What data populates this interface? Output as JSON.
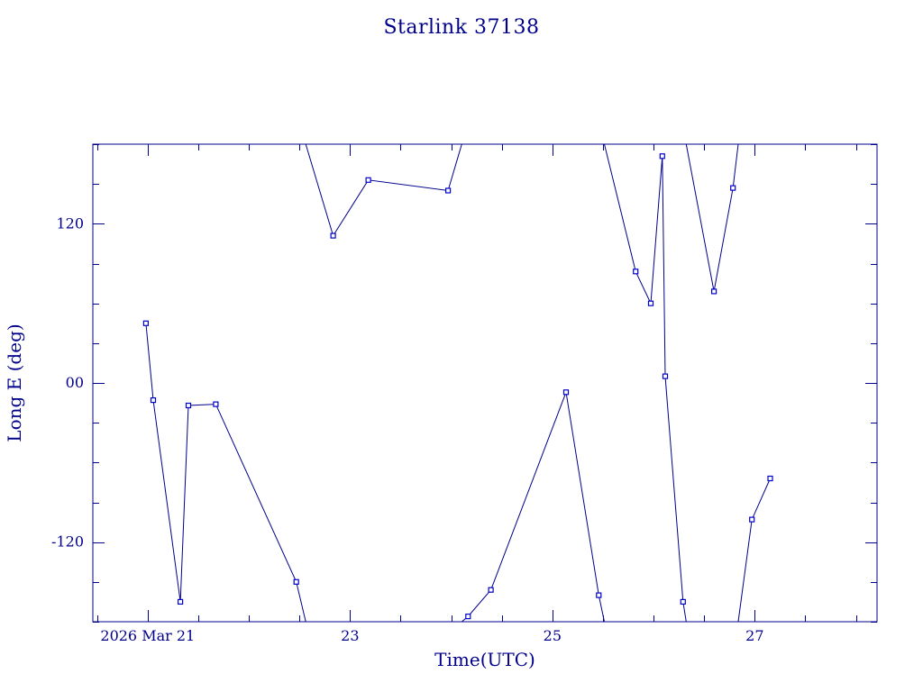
{
  "chart_data": {
    "type": "line",
    "title": "Starlink 37138",
    "xlabel": "Time(UTC)",
    "ylabel": "Long E (deg)",
    "xlim": [
      "2026-03-20T11:00",
      "2026-03-28T05:00"
    ],
    "ylim": [
      -180,
      180
    ],
    "x_ticks": [
      {
        "value": "2026-03-21",
        "label": "2026 Mar 21"
      },
      {
        "value": "2026-03-23",
        "label": "23"
      },
      {
        "value": "2026-03-25",
        "label": "25"
      },
      {
        "value": "2026-03-27",
        "label": "27"
      }
    ],
    "y_ticks": [
      {
        "value": 120,
        "label": "120"
      },
      {
        "value": 0,
        "label": "00"
      },
      {
        "value": -120,
        "label": "-120"
      }
    ],
    "grid": false,
    "marker": "square",
    "series": [
      {
        "points": [
          [
            "2026-03-20T23:35",
            45
          ],
          [
            "2026-03-21T01:20",
            -13
          ],
          [
            "2026-03-21T07:45",
            -165
          ],
          [
            "2026-03-21T09:40",
            -17
          ],
          [
            "2026-03-21T16:10",
            -16
          ],
          [
            "2026-03-22T11:15",
            -150
          ],
          [
            "2026-03-22T13:30",
            -180
          ],
          [
            null,
            null
          ],
          [
            "2026-03-22T13:30",
            180
          ],
          [
            "2026-03-22T20:00",
            111
          ],
          [
            "2026-03-23T04:20",
            153
          ],
          [
            "2026-03-23T23:15",
            145
          ],
          [
            "2026-03-24T02:30",
            180
          ],
          [
            null,
            null
          ],
          [
            "2026-03-24T02:30",
            -180
          ],
          [
            "2026-03-24T04:00",
            -176
          ],
          [
            "2026-03-24T09:25",
            -156
          ],
          [
            "2026-03-25T03:15",
            -7
          ],
          [
            "2026-03-25T11:00",
            -160
          ],
          [
            "2026-03-25T12:20",
            -180
          ],
          [
            null,
            null
          ],
          [
            "2026-03-25T12:20",
            180
          ],
          [
            "2026-03-25T19:45",
            84
          ],
          [
            "2026-03-25T23:20",
            60
          ],
          [
            "2026-03-26T02:05",
            171
          ],
          [
            "2026-03-26T02:45",
            5
          ],
          [
            "2026-03-26T07:00",
            -165
          ],
          [
            "2026-03-26T07:45",
            -180
          ],
          [
            null,
            null
          ],
          [
            "2026-03-26T07:45",
            180
          ],
          [
            "2026-03-26T14:20",
            69
          ],
          [
            "2026-03-26T18:50",
            147
          ],
          [
            "2026-03-26T20:05",
            180
          ],
          [
            null,
            null
          ],
          [
            "2026-03-26T20:05",
            -180
          ],
          [
            "2026-03-26T23:20",
            -103
          ],
          [
            "2026-03-27T03:40",
            -72
          ]
        ]
      }
    ],
    "colors": {
      "axis": "#00008b",
      "line": "#00008b",
      "marker": "#0000cc"
    }
  }
}
